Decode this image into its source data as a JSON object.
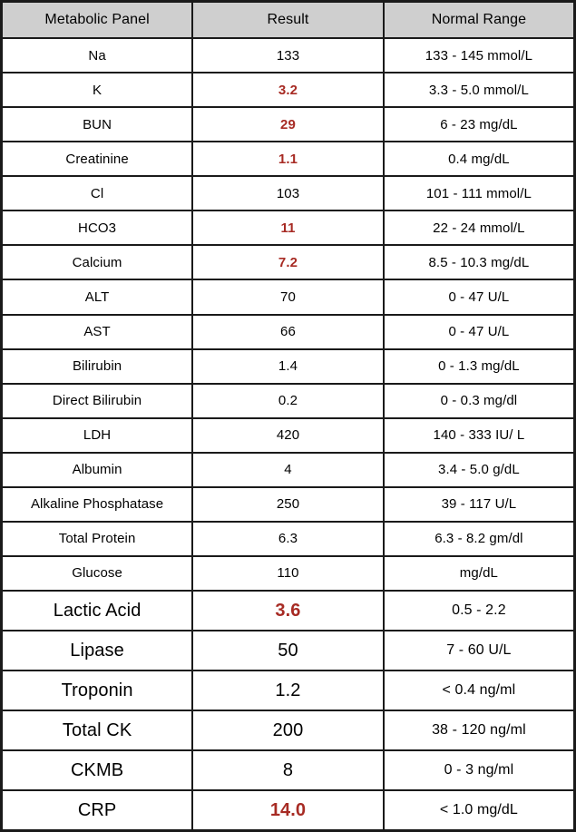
{
  "colors": {
    "header_bg": "#cfcfcf",
    "border": "#1a1a1a",
    "abnormal": "#a72b24",
    "text": "#000000"
  },
  "table": {
    "columns": [
      "Metabolic Panel",
      "Result",
      "Normal Range"
    ],
    "rows": [
      {
        "name": "Na",
        "result": "133",
        "range": "133 - 145 mmol/L",
        "abnormal": false,
        "large": false
      },
      {
        "name": "K",
        "result": "3.2",
        "range": "3.3 - 5.0 mmol/L",
        "abnormal": true,
        "large": false
      },
      {
        "name": "BUN",
        "result": "29",
        "range": "6 - 23 mg/dL",
        "abnormal": true,
        "large": false
      },
      {
        "name": "Creatinine",
        "result": "1.1",
        "range": "0.4 mg/dL",
        "abnormal": true,
        "large": false
      },
      {
        "name": "Cl",
        "result": "103",
        "range": "101 - 111 mmol/L",
        "abnormal": false,
        "large": false
      },
      {
        "name": "HCO3",
        "result": "11",
        "range": "22 - 24 mmol/L",
        "abnormal": true,
        "large": false
      },
      {
        "name": "Calcium",
        "result": "7.2",
        "range": "8.5 - 10.3 mg/dL",
        "abnormal": true,
        "large": false
      },
      {
        "name": "ALT",
        "result": "70",
        "range": "0 - 47 U/L",
        "abnormal": false,
        "large": false
      },
      {
        "name": "AST",
        "result": "66",
        "range": "0 - 47 U/L",
        "abnormal": false,
        "large": false
      },
      {
        "name": "Bilirubin",
        "result": "1.4",
        "range": "0 - 1.3 mg/dL",
        "abnormal": false,
        "large": false
      },
      {
        "name": "Direct Bilirubin",
        "result": "0.2",
        "range": "0 - 0.3 mg/dl",
        "abnormal": false,
        "large": false
      },
      {
        "name": "LDH",
        "result": "420",
        "range": "140 - 333 IU/ L",
        "abnormal": false,
        "large": false
      },
      {
        "name": "Albumin",
        "result": "4",
        "range": "3.4 - 5.0 g/dL",
        "abnormal": false,
        "large": false
      },
      {
        "name": "Alkaline Phosphatase",
        "result": "250",
        "range": "39 - 117 U/L",
        "abnormal": false,
        "large": false
      },
      {
        "name": "Total Protein",
        "result": "6.3",
        "range": "6.3 - 8.2 gm/dl",
        "abnormal": false,
        "large": false
      },
      {
        "name": "Glucose",
        "result": "110",
        "range": "mg/dL",
        "abnormal": false,
        "large": false
      },
      {
        "name": "Lactic Acid",
        "result": "3.6",
        "range": "0.5 - 2.2",
        "abnormal": true,
        "large": true
      },
      {
        "name": "Lipase",
        "result": "50",
        "range": "7 - 60 U/L",
        "abnormal": false,
        "large": true
      },
      {
        "name": "Troponin",
        "result": "1.2",
        "range": "< 0.4 ng/ml",
        "abnormal": false,
        "large": true
      },
      {
        "name": "Total CK",
        "result": "200",
        "range": "38 - 120 ng/ml",
        "abnormal": false,
        "large": true
      },
      {
        "name": "CKMB",
        "result": "8",
        "range": "0 - 3 ng/ml",
        "abnormal": false,
        "large": true
      },
      {
        "name": "CRP",
        "result": "14.0",
        "range": "< 1.0 mg/dL",
        "abnormal": true,
        "large": true
      }
    ]
  }
}
